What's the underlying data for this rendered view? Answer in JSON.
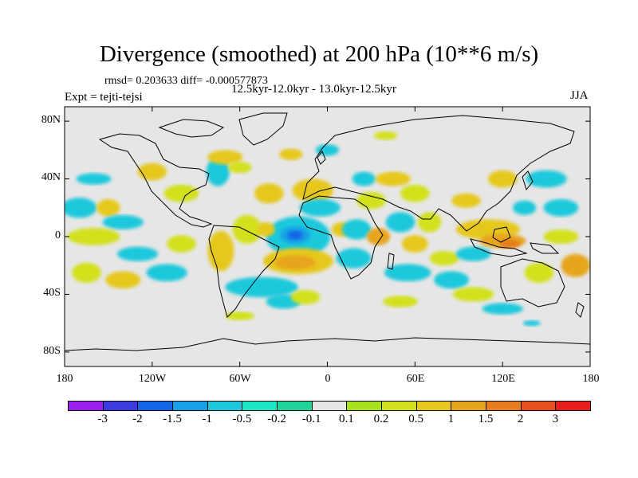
{
  "title": "Divergence (smoothed) at 200 hPa (10**6 m/s)",
  "stats": "rmsd= 0.203633 diff= -0.000577873",
  "period": "12.5kyr-12.0kyr - 13.0kyr-12.5kyr",
  "experiment": "Expt = tejti-tejsi",
  "season": "JJA",
  "map": {
    "lat_labels": [
      "80N",
      "40N",
      "0",
      "40S",
      "80S"
    ],
    "lon_labels": [
      "180",
      "120W",
      "60W",
      "0",
      "60E",
      "120E",
      "180"
    ],
    "ocean_color": "#e6e6e6",
    "coast_color": "#000000"
  },
  "colorbar": {
    "colors": [
      "#9a1ff0",
      "#3c3cdf",
      "#1464e6",
      "#199fe6",
      "#1ec8dc",
      "#1ee6c8",
      "#1ed49b",
      "#e6e6e6",
      "#a6e31e",
      "#d2e11e",
      "#e6c81e",
      "#e6a51e",
      "#e67d1e",
      "#e6501e",
      "#e61e1e"
    ],
    "labels": [
      "-3",
      "-2",
      "-1.5",
      "-1",
      "-0.5",
      "-0.2",
      "-0.1",
      "0.1",
      "0.2",
      "0.5",
      "1",
      "1.5",
      "2",
      "3"
    ]
  },
  "blobs": [
    {
      "lon": -20,
      "lat": 0,
      "rx": 22,
      "ry": 14,
      "color": "#1ec8dc"
    },
    {
      "lon": -22,
      "lat": 1,
      "rx": 10,
      "ry": 6,
      "color": "#199fe6"
    },
    {
      "lon": -22,
      "lat": 1,
      "rx": 5,
      "ry": 3,
      "color": "#1464e6"
    },
    {
      "lon": -20,
      "lat": -17,
      "rx": 24,
      "ry": 9,
      "color": "#e6c81e"
    },
    {
      "lon": -22,
      "lat": -18,
      "rx": 14,
      "ry": 5,
      "color": "#e6a51e"
    },
    {
      "lon": -10,
      "lat": 32,
      "rx": 14,
      "ry": 8,
      "color": "#e6c81e"
    },
    {
      "lon": -5,
      "lat": 20,
      "rx": 14,
      "ry": 6,
      "color": "#1ec8dc"
    },
    {
      "lon": -40,
      "lat": 30,
      "rx": 10,
      "ry": 7,
      "color": "#e6c81e"
    },
    {
      "lon": -55,
      "lat": 5,
      "rx": 10,
      "ry": 10,
      "color": "#d2e11e"
    },
    {
      "lon": -42,
      "lat": 5,
      "rx": 6,
      "ry": 5,
      "color": "#e6c81e"
    },
    {
      "lon": -73,
      "lat": -10,
      "rx": 9,
      "ry": 14,
      "color": "#e6c81e"
    },
    {
      "lon": -45,
      "lat": -35,
      "rx": 25,
      "ry": 7,
      "color": "#1ec8dc"
    },
    {
      "lon": -30,
      "lat": -45,
      "rx": 12,
      "ry": 5,
      "color": "#1ec8dc"
    },
    {
      "lon": -15,
      "lat": -42,
      "rx": 10,
      "ry": 5,
      "color": "#d2e11e"
    },
    {
      "lon": -100,
      "lat": 30,
      "rx": 12,
      "ry": 6,
      "color": "#d2e11e"
    },
    {
      "lon": -120,
      "lat": 45,
      "rx": 10,
      "ry": 6,
      "color": "#e6c81e"
    },
    {
      "lon": -75,
      "lat": 45,
      "rx": 8,
      "ry": 10,
      "color": "#1ec8dc"
    },
    {
      "lon": -70,
      "lat": 55,
      "rx": 12,
      "ry": 5,
      "color": "#e6c81e"
    },
    {
      "lon": -60,
      "lat": 48,
      "rx": 8,
      "ry": 4,
      "color": "#d2e11e"
    },
    {
      "lon": -170,
      "lat": 20,
      "rx": 12,
      "ry": 7,
      "color": "#1ec8dc"
    },
    {
      "lon": -160,
      "lat": 40,
      "rx": 12,
      "ry": 4,
      "color": "#1ec8dc"
    },
    {
      "lon": -150,
      "lat": 20,
      "rx": 8,
      "ry": 6,
      "color": "#e6c81e"
    },
    {
      "lon": -140,
      "lat": 10,
      "rx": 14,
      "ry": 5,
      "color": "#1ec8dc"
    },
    {
      "lon": -160,
      "lat": 0,
      "rx": 18,
      "ry": 6,
      "color": "#d2e11e"
    },
    {
      "lon": -130,
      "lat": -12,
      "rx": 14,
      "ry": 5,
      "color": "#1ec8dc"
    },
    {
      "lon": -165,
      "lat": -25,
      "rx": 10,
      "ry": 7,
      "color": "#d2e11e"
    },
    {
      "lon": -140,
      "lat": -30,
      "rx": 12,
      "ry": 6,
      "color": "#e6c81e"
    },
    {
      "lon": -110,
      "lat": -25,
      "rx": 14,
      "ry": 6,
      "color": "#1ec8dc"
    },
    {
      "lon": -100,
      "lat": -5,
      "rx": 10,
      "ry": 6,
      "color": "#d2e11e"
    },
    {
      "lon": 10,
      "lat": 5,
      "rx": 7,
      "ry": 5,
      "color": "#e6c81e"
    },
    {
      "lon": 20,
      "lat": 5,
      "rx": 10,
      "ry": 7,
      "color": "#1ec8dc"
    },
    {
      "lon": 18,
      "lat": -15,
      "rx": 12,
      "ry": 7,
      "color": "#1ec8dc"
    },
    {
      "lon": 35,
      "lat": 0,
      "rx": 8,
      "ry": 6,
      "color": "#e6a51e"
    },
    {
      "lon": 30,
      "lat": 25,
      "rx": 10,
      "ry": 6,
      "color": "#d2e11e"
    },
    {
      "lon": 25,
      "lat": 40,
      "rx": 8,
      "ry": 5,
      "color": "#1ec8dc"
    },
    {
      "lon": 50,
      "lat": 10,
      "rx": 10,
      "ry": 7,
      "color": "#1ec8dc"
    },
    {
      "lon": 45,
      "lat": 40,
      "rx": 12,
      "ry": 5,
      "color": "#e6c81e"
    },
    {
      "lon": 60,
      "lat": 30,
      "rx": 10,
      "ry": 6,
      "color": "#d2e11e"
    },
    {
      "lon": 60,
      "lat": -5,
      "rx": 9,
      "ry": 6,
      "color": "#e6c81e"
    },
    {
      "lon": 55,
      "lat": -25,
      "rx": 16,
      "ry": 6,
      "color": "#1ec8dc"
    },
    {
      "lon": 70,
      "lat": 10,
      "rx": 8,
      "ry": 7,
      "color": "#d2e11e"
    },
    {
      "lon": 80,
      "lat": -15,
      "rx": 10,
      "ry": 5,
      "color": "#d2e11e"
    },
    {
      "lon": 85,
      "lat": -30,
      "rx": 12,
      "ry": 6,
      "color": "#1ec8dc"
    },
    {
      "lon": 95,
      "lat": 25,
      "rx": 10,
      "ry": 5,
      "color": "#e6c81e"
    },
    {
      "lon": 110,
      "lat": 5,
      "rx": 22,
      "ry": 7,
      "color": "#e6c81e"
    },
    {
      "lon": 120,
      "lat": -3,
      "rx": 16,
      "ry": 5,
      "color": "#e6a51e"
    },
    {
      "lon": 125,
      "lat": -5,
      "rx": 7,
      "ry": 3,
      "color": "#e67d1e"
    },
    {
      "lon": 100,
      "lat": -12,
      "rx": 12,
      "ry": 5,
      "color": "#1ec8dc"
    },
    {
      "lon": 120,
      "lat": 40,
      "rx": 10,
      "ry": 6,
      "color": "#e6c81e"
    },
    {
      "lon": 135,
      "lat": 20,
      "rx": 8,
      "ry": 5,
      "color": "#1ec8dc"
    },
    {
      "lon": 150,
      "lat": 40,
      "rx": 14,
      "ry": 6,
      "color": "#1ec8dc"
    },
    {
      "lon": 160,
      "lat": 20,
      "rx": 12,
      "ry": 6,
      "color": "#1ec8dc"
    },
    {
      "lon": 145,
      "lat": -25,
      "rx": 10,
      "ry": 7,
      "color": "#d2e11e"
    },
    {
      "lon": 170,
      "lat": -20,
      "rx": 10,
      "ry": 8,
      "color": "#e6a51e"
    },
    {
      "lon": 160,
      "lat": 0,
      "rx": 12,
      "ry": 5,
      "color": "#d2e11e"
    },
    {
      "lon": 0,
      "lat": 60,
      "rx": 8,
      "ry": 4,
      "color": "#1ec8dc"
    },
    {
      "lon": 40,
      "lat": 70,
      "rx": 8,
      "ry": 3,
      "color": "#d2e11e"
    },
    {
      "lon": -25,
      "lat": 57,
      "rx": 8,
      "ry": 4,
      "color": "#e6c81e"
    },
    {
      "lon": 100,
      "lat": -40,
      "rx": 14,
      "ry": 5,
      "color": "#d2e11e"
    },
    {
      "lon": 120,
      "lat": -50,
      "rx": 14,
      "ry": 4,
      "color": "#1ec8dc"
    },
    {
      "lon": 50,
      "lat": -45,
      "rx": 12,
      "ry": 4,
      "color": "#d2e11e"
    },
    {
      "lon": -60,
      "lat": -55,
      "rx": 10,
      "ry": 3,
      "color": "#d2e11e"
    },
    {
      "lon": 140,
      "lat": -60,
      "rx": 6,
      "ry": 2,
      "color": "#1ec8dc"
    }
  ]
}
